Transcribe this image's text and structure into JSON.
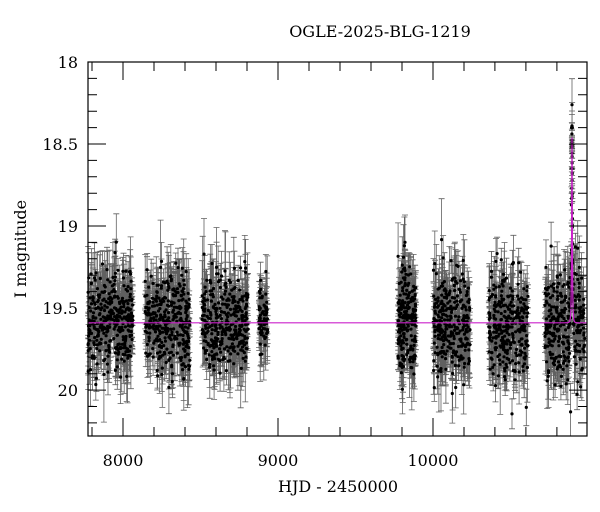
{
  "chart_data": {
    "type": "scatter",
    "title": "OGLE-2025-BLG-1219",
    "xlabel": "HJD - 2450000",
    "ylabel": "I magnitude",
    "xlim": [
      7774,
      10994
    ],
    "ylim": [
      20.28,
      18.0
    ],
    "y_inverted": true,
    "x_major_ticks": [
      8000,
      9000,
      10000
    ],
    "x_minor_step": 200,
    "y_major_ticks": [
      18,
      18.5,
      19,
      19.5,
      20
    ],
    "y_minor_step": 0.1,
    "grid": false,
    "legend": null,
    "series": [
      {
        "name": "OGLE I-band photometry",
        "style": "black points with gray error bars",
        "color": "#000000",
        "seasons": [
          {
            "start": 7774,
            "end": 8064,
            "n": 340,
            "mean": 19.58,
            "scatter": 0.17
          },
          {
            "start": 8142,
            "end": 8432,
            "n": 340,
            "mean": 19.58,
            "scatter": 0.17
          },
          {
            "start": 8510,
            "end": 8806,
            "n": 340,
            "mean": 19.58,
            "scatter": 0.17
          },
          {
            "start": 8877,
            "end": 8935,
            "n": 70,
            "mean": 19.55,
            "scatter": 0.12
          },
          {
            "start": 9774,
            "end": 9890,
            "n": 220,
            "mean": 19.58,
            "scatter": 0.18
          },
          {
            "start": 9999,
            "end": 10239,
            "n": 300,
            "mean": 19.6,
            "scatter": 0.18
          },
          {
            "start": 10361,
            "end": 10613,
            "n": 300,
            "mean": 19.6,
            "scatter": 0.18
          },
          {
            "start": 10722,
            "end": 10981,
            "n": 320,
            "mean": 19.6,
            "scatter": 0.18
          }
        ],
        "peak_point": {
          "hjd": 10897,
          "mag": 18.4,
          "err": 0.04
        }
      },
      {
        "name": "Microlensing model",
        "style": "line",
        "color": "#cc22cc",
        "baseline_mag": 19.59,
        "peak_hjd": 10897,
        "peak_mag": 18.45,
        "tE_days": 4.5
      }
    ]
  }
}
